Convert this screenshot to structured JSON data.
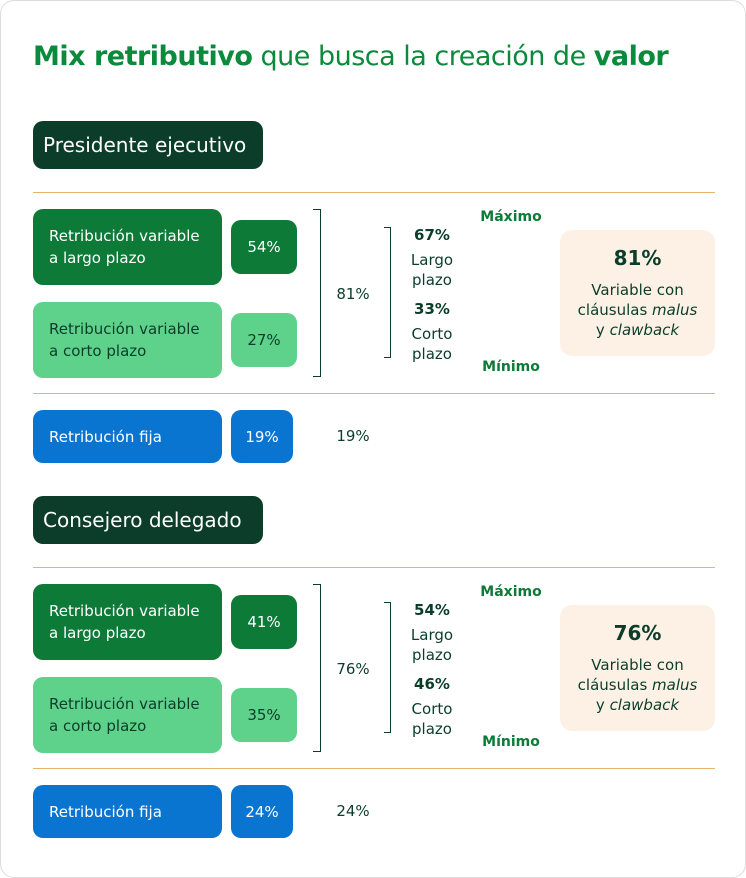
{
  "title": {
    "bold_start": "Mix retributivo",
    "middle": "que busca la creación de",
    "bold_end": "valor"
  },
  "sections": [
    {
      "heading": "Presidente ejecutivo",
      "items": [
        {
          "label": "Retribución variable a largo plazo",
          "value": "54%"
        },
        {
          "label": "Retribución variable a corto plazo",
          "value": "27%"
        }
      ],
      "variable_total": "81%",
      "split": [
        {
          "value": "67%",
          "label": "Largo plazo"
        },
        {
          "value": "33%",
          "label": "Corto plazo"
        }
      ],
      "max_label": "Máximo",
      "min_label": "Mínimo",
      "callout": {
        "value": "81%",
        "text": "Variable con cláusulas",
        "italic_1": "malus",
        "joiner": "y",
        "italic_2": "clawback"
      },
      "fixed": {
        "label": "Retribución fija",
        "value": "19%",
        "total": "19%"
      }
    },
    {
      "heading": "Consejero delegado",
      "items": [
        {
          "label": "Retribución variable a largo plazo",
          "value": "41%"
        },
        {
          "label": "Retribución variable a corto plazo",
          "value": "35%"
        }
      ],
      "variable_total": "76%",
      "split": [
        {
          "value": "54%",
          "label": "Largo plazo"
        },
        {
          "value": "46%",
          "label": "Corto plazo"
        }
      ],
      "max_label": "Máximo",
      "min_label": "Mínimo",
      "callout": {
        "value": "76%",
        "text": "Variable con cláusulas",
        "italic_1": "malus",
        "joiner": "y",
        "italic_2": "clawback"
      },
      "fixed": {
        "label": "Retribución fija",
        "value": "24%",
        "total": "24%"
      }
    }
  ]
}
